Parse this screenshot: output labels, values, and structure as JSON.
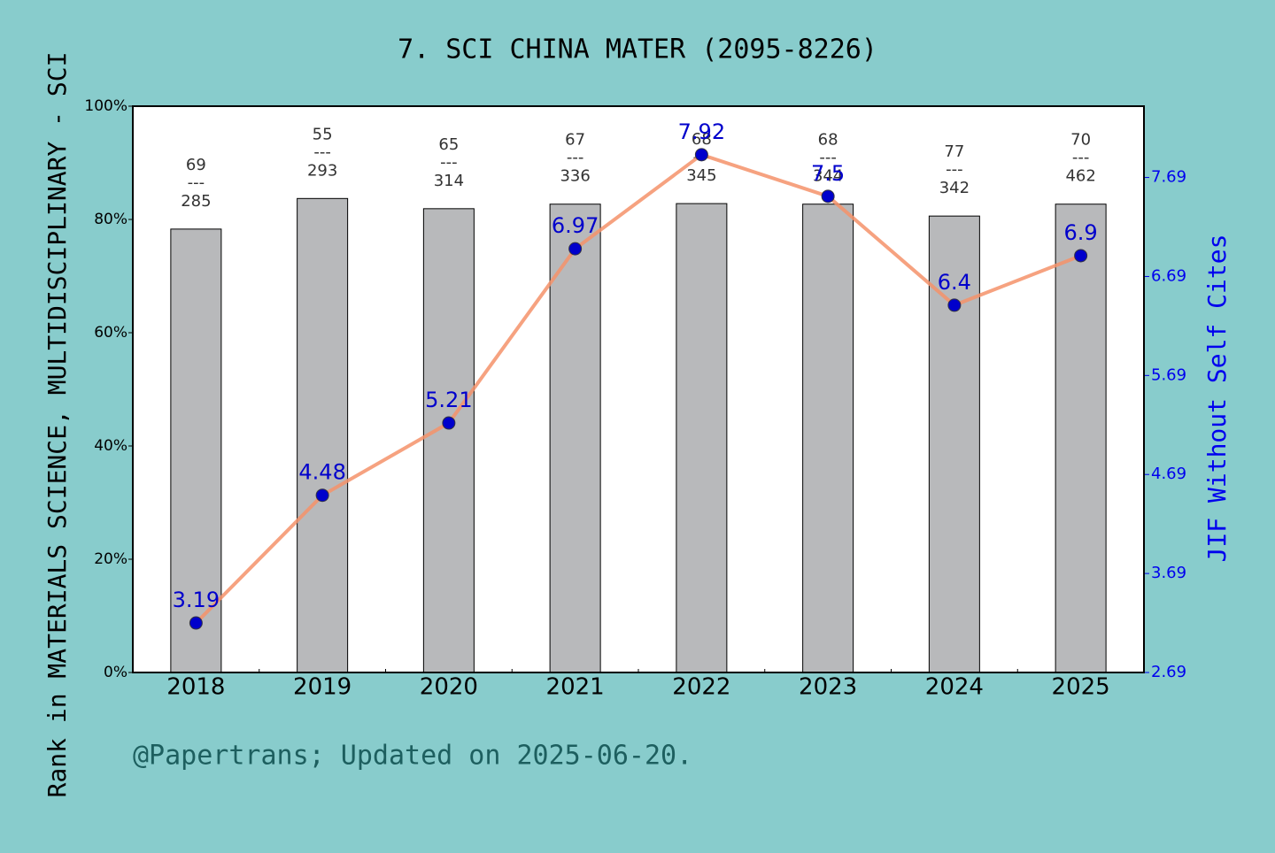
{
  "chart_data": {
    "type": "bar",
    "title": "7. SCI CHINA MATER (2095-8226)",
    "ylabel": "Rank in MATERIALS SCIENCE, MULTIDISCIPLINARY - SCI",
    "y2label": "JIF Without Self Cites",
    "footer": "@Papertrans; Updated on 2025-06-20.",
    "categories": [
      "2018",
      "2019",
      "2020",
      "2021",
      "2022",
      "2023",
      "2024",
      "2025"
    ],
    "series": [
      {
        "type": "bar",
        "color": "#b8b9bb",
        "values": [
          78.3,
          83.7,
          81.9,
          82.7,
          82.8,
          82.7,
          80.6,
          82.7
        ],
        "ranks": [
          69,
          55,
          65,
          67,
          68,
          68,
          77,
          70
        ],
        "separator": "---",
        "totals": [
          285,
          293,
          314,
          336,
          345,
          344,
          342,
          462
        ]
      },
      {
        "type": "line",
        "axis": "y2",
        "color": "#f4926a",
        "marker_color": "#0000cc",
        "values": [
          3.19,
          4.48,
          5.21,
          6.97,
          7.92,
          7.5,
          6.4,
          6.9
        ]
      }
    ],
    "ylim": [
      0,
      100
    ],
    "yticks": [
      {
        "value": 0,
        "label": "0%"
      },
      {
        "value": 20,
        "label": "20%"
      },
      {
        "value": 40,
        "label": "40%"
      },
      {
        "value": 60,
        "label": "60%"
      },
      {
        "value": 80,
        "label": "80%"
      },
      {
        "value": 100,
        "label": "100%"
      }
    ],
    "y2lim": [
      2.69,
      8.41
    ],
    "y2ticks": [
      2.69,
      3.69,
      4.69,
      5.69,
      6.69,
      7.69
    ]
  }
}
